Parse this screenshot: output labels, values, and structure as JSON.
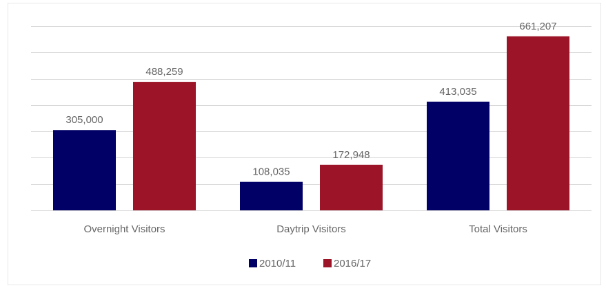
{
  "chart_data": {
    "type": "bar",
    "categories": [
      "Overnight Visitors",
      "Daytrip Visitors",
      "Total Visitors"
    ],
    "series": [
      {
        "name": "2010/11",
        "color": "#000066",
        "values": [
          305000,
          108035,
          413035
        ],
        "value_labels": [
          "305,000",
          "108,035",
          "413,035"
        ]
      },
      {
        "name": "2016/17",
        "color": "#9b1427",
        "values": [
          488259,
          172948,
          661207
        ],
        "value_labels": [
          "488,259",
          "172,948",
          "661,207"
        ]
      }
    ],
    "ylim": [
      0,
      700000
    ],
    "yticks": [
      0,
      100000,
      200000,
      300000,
      400000,
      500000,
      600000,
      700000
    ],
    "grid": true,
    "legend": "bottom"
  }
}
